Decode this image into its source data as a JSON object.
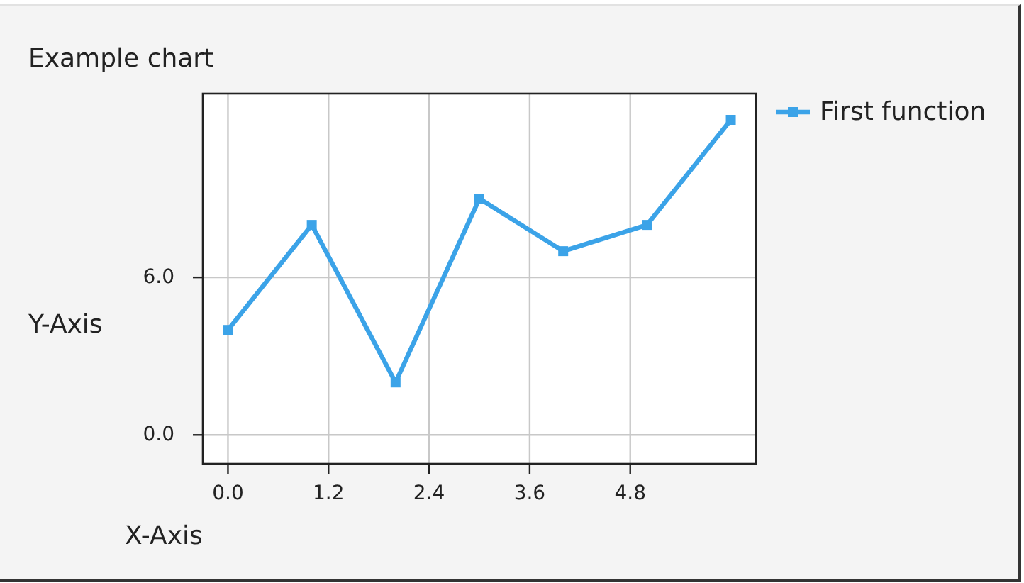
{
  "chart_data": {
    "type": "line",
    "title": "Example chart",
    "xlabel": "X-Axis",
    "ylabel": "Y-Axis",
    "x": [
      0,
      1,
      2,
      3,
      4,
      5,
      6
    ],
    "series": [
      {
        "name": "First function",
        "color": "#3ba3e8",
        "values": [
          4,
          8,
          2,
          9,
          7,
          8,
          12
        ]
      }
    ],
    "xlim": [
      -0.3,
      6.3
    ],
    "ylim": [
      -1.1,
      13
    ],
    "xticks": [
      {
        "value": 0,
        "label": "0.0"
      },
      1.2,
      2.4,
      3.6,
      4.8
    ],
    "yticks": [
      {
        "value": 0,
        "label": "0.0"
      },
      {
        "value": 6,
        "label": "6.0"
      }
    ],
    "grid": true,
    "legend": "top right",
    "marker": "square",
    "line_style": "solid"
  }
}
